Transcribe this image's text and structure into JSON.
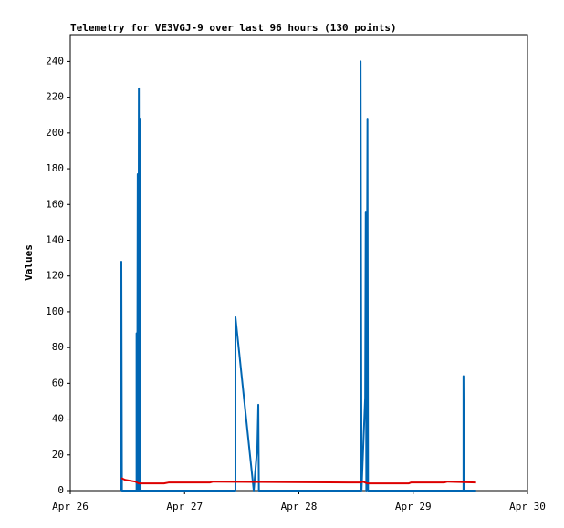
{
  "chart_data": {
    "type": "line",
    "title": "Telemetry for VE3VGJ-9 over last 96 hours (130 points)",
    "y_label": "Values",
    "xlim": [
      0,
      4
    ],
    "xticks": [
      {
        "value": 0,
        "label": "Apr 26"
      },
      {
        "value": 1,
        "label": "Apr 27"
      },
      {
        "value": 2,
        "label": "Apr 28"
      },
      {
        "value": 3,
        "label": "Apr 29"
      },
      {
        "value": 4,
        "label": "Apr 30"
      }
    ],
    "ylim": [
      0,
      255
    ],
    "yticks": [
      0,
      20,
      40,
      60,
      80,
      100,
      120,
      140,
      160,
      180,
      200,
      220,
      240
    ],
    "series": [
      {
        "color": "#000000",
        "x": [
          0.447,
          3.55
        ],
        "values": [
          0,
          0
        ]
      },
      {
        "color": "#0066b3",
        "x": [
          0.447,
          0.447,
          0.452,
          0.58,
          0.58,
          0.585,
          0.59,
          0.595,
          0.6,
          0.605,
          0.61,
          0.615,
          1.445,
          1.445,
          1.605,
          1.637,
          1.645,
          1.65,
          2.54,
          2.54,
          2.548,
          2.58,
          2.585,
          2.59,
          2.6,
          2.605,
          3.44,
          3.44,
          3.445,
          3.55
        ],
        "values": [
          0,
          128,
          0,
          0,
          88,
          0,
          177,
          0,
          225,
          0,
          208,
          0,
          0,
          97,
          0,
          25,
          48,
          0,
          0,
          240,
          0,
          52,
          156,
          0,
          208,
          0,
          0,
          64,
          0,
          0
        ]
      },
      {
        "color": "#dd0000",
        "x": [
          0.447,
          0.48,
          0.57,
          0.6,
          0.82,
          0.86,
          1.22,
          1.25,
          2.54,
          2.56,
          2.6,
          2.96,
          2.98,
          3.27,
          3.3,
          3.55
        ],
        "values": [
          7,
          6,
          5,
          4,
          4,
          4.5,
          4.5,
          5,
          4.5,
          5,
          4,
          4,
          4.5,
          4.5,
          5,
          4.5
        ]
      }
    ]
  }
}
